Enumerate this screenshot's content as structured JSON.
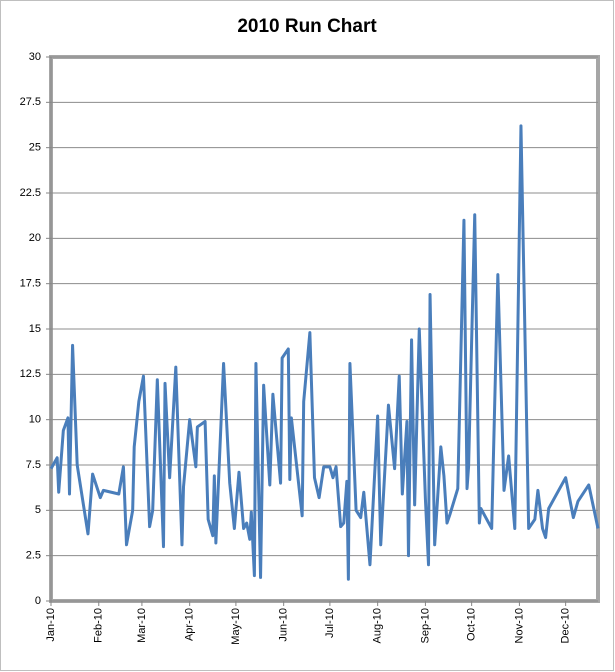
{
  "chart_data": {
    "type": "line",
    "title": "2010 Run Chart",
    "x": [
      0,
      4,
      5,
      8,
      11,
      12,
      14,
      17,
      24,
      27,
      32,
      34,
      44,
      47,
      49,
      53,
      54,
      57,
      60,
      64,
      66,
      69,
      73,
      74,
      77,
      81,
      85,
      86,
      90,
      94,
      95,
      100,
      102,
      105,
      106,
      107,
      112,
      116,
      119,
      122,
      125,
      127,
      129,
      130,
      132,
      133,
      136,
      138,
      142,
      144,
      149,
      150,
      154,
      155,
      156,
      163,
      164,
      168,
      171,
      174,
      177,
      181,
      183,
      185,
      188,
      190,
      192,
      193,
      194,
      198,
      201,
      203,
      207,
      212,
      214,
      219,
      223,
      226,
      228,
      231,
      232,
      234,
      236,
      239,
      243,
      245,
      246,
      249,
      253,
      255,
      257,
      259,
      264,
      268,
      270,
      271,
      275,
      278,
      279,
      286,
      290,
      294,
      297,
      301,
      305,
      310,
      314,
      316,
      319,
      321,
      323,
      334,
      339,
      342,
      349,
      355
    ],
    "series": [
      {
        "color": "#4a7ebb",
        "values": [
          7.3,
          7.9,
          6.0,
          9.4,
          10.1,
          5.9,
          14.1,
          7.5,
          3.7,
          7.0,
          5.7,
          6.1,
          5.9,
          7.4,
          3.1,
          5.0,
          8.5,
          11.0,
          12.4,
          4.1,
          5.0,
          12.2,
          3.0,
          12.0,
          6.8,
          12.9,
          3.1,
          6.3,
          10.0,
          7.4,
          9.6,
          9.9,
          4.5,
          3.6,
          6.9,
          3.2,
          13.1,
          6.5,
          4.0,
          7.1,
          4.0,
          4.3,
          3.4,
          4.9,
          1.4,
          13.1,
          1.3,
          11.9,
          6.4,
          11.4,
          6.5,
          13.4,
          13.9,
          6.7,
          10.1,
          4.7,
          11.0,
          14.8,
          6.8,
          5.7,
          7.4,
          7.4,
          6.8,
          7.4,
          4.1,
          4.3,
          6.6,
          1.2,
          13.1,
          5.0,
          4.6,
          6.0,
          2.0,
          10.2,
          3.1,
          10.8,
          7.3,
          12.4,
          5.9,
          9.9,
          2.5,
          14.4,
          5.3,
          15.0,
          5.6,
          2.0,
          16.9,
          3.1,
          8.5,
          6.9,
          4.3,
          4.8,
          6.2,
          21.0,
          6.2,
          7.4,
          21.3,
          4.3,
          5.1,
          4.0,
          18.0,
          6.1,
          8.0,
          4.0,
          26.2,
          4.0,
          4.5,
          6.1,
          4.0,
          3.5,
          5.1,
          6.8,
          4.6,
          5.5,
          6.4,
          4.0
        ]
      }
    ],
    "xlim": [
      0,
      355
    ],
    "xticks": [
      {
        "value": 0,
        "label": "Jan-10"
      },
      {
        "value": 31,
        "label": "Feb-10"
      },
      {
        "value": 59,
        "label": "Mar-10"
      },
      {
        "value": 90,
        "label": "Apr-10"
      },
      {
        "value": 120,
        "label": "May-10"
      },
      {
        "value": 151,
        "label": "Jun-10"
      },
      {
        "value": 181,
        "label": "Jul-10"
      },
      {
        "value": 212,
        "label": "Aug-10"
      },
      {
        "value": 243,
        "label": "Sep-10"
      },
      {
        "value": 273,
        "label": "Oct-10"
      },
      {
        "value": 304,
        "label": "Nov-10"
      },
      {
        "value": 334,
        "label": "Dec-10"
      }
    ],
    "ylim": [
      0,
      30
    ],
    "yticks": [
      0,
      2.5,
      5,
      7.5,
      10,
      12.5,
      15,
      17.5,
      20,
      22.5,
      25,
      27.5,
      30
    ],
    "grid": true
  }
}
